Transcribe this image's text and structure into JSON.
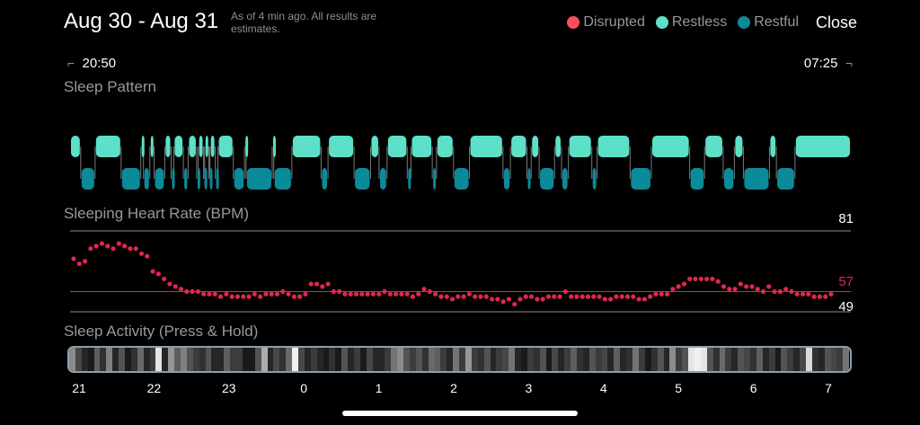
{
  "header": {
    "date_range": "Aug 30 - Aug 31",
    "as_of_note": "As of 4 min ago. All results are estimates.",
    "close_label": "Close"
  },
  "legend": [
    {
      "label": "Disrupted",
      "color": "#ff4d5e"
    },
    {
      "label": "Restless",
      "color": "#5ce1c8"
    },
    {
      "label": "Restful",
      "color": "#0b8a99"
    }
  ],
  "time_range": {
    "start": "20:50",
    "end": "07:25"
  },
  "sleep_pattern": {
    "title": "Sleep Pattern",
    "colors": {
      "restless": "#5ce1c8",
      "restful": "#0b8a99"
    },
    "segments": [
      [
        "restless",
        0,
        20
      ],
      [
        "restful",
        20,
        47
      ],
      [
        "restless",
        47,
        96
      ],
      [
        "restful",
        96,
        133
      ],
      [
        "restless",
        133,
        138
      ],
      [
        "restful",
        138,
        150
      ],
      [
        "restless",
        150,
        158
      ],
      [
        "restful",
        158,
        178
      ],
      [
        "restless",
        178,
        190
      ],
      [
        "restful",
        190,
        195
      ],
      [
        "restless",
        195,
        213
      ],
      [
        "restful",
        213,
        222
      ],
      [
        "restless",
        222,
        238
      ],
      [
        "restful",
        238,
        241
      ],
      [
        "restless",
        241,
        251
      ],
      [
        "restful",
        251,
        253
      ],
      [
        "restless",
        253,
        261
      ],
      [
        "restful",
        261,
        263
      ],
      [
        "restless",
        263,
        273
      ],
      [
        "restful",
        273,
        278
      ],
      [
        "restless",
        278,
        307
      ],
      [
        "restful",
        307,
        328
      ],
      [
        "restless",
        328,
        331
      ],
      [
        "restful",
        331,
        380
      ],
      [
        "restless",
        380,
        383
      ],
      [
        "restful",
        383,
        417
      ],
      [
        "restless",
        417,
        472
      ],
      [
        "restful",
        472,
        485
      ],
      [
        "restless",
        485,
        534
      ],
      [
        "restful",
        534,
        565
      ],
      [
        "restless",
        565,
        581
      ],
      [
        "restful",
        581,
        596
      ],
      [
        "restless",
        596,
        634
      ],
      [
        "restful",
        634,
        641
      ],
      [
        "restless",
        641,
        681
      ],
      [
        "restful",
        681,
        689
      ],
      [
        "restless",
        689,
        721
      ],
      [
        "restful",
        721,
        751
      ],
      [
        "restless",
        751,
        814
      ],
      [
        "restful",
        814,
        828
      ],
      [
        "restless",
        828,
        859
      ],
      [
        "restful",
        859,
        867
      ],
      [
        "restless",
        867,
        882
      ],
      [
        "restful",
        882,
        911
      ],
      [
        "restless",
        911,
        924
      ],
      [
        "restful",
        924,
        937
      ],
      [
        "restless",
        937,
        981
      ],
      [
        "restful",
        981,
        991
      ],
      [
        "restless",
        991,
        1053
      ],
      [
        "restful",
        1053,
        1093
      ],
      [
        "restless",
        1093,
        1165
      ],
      [
        "restful",
        1165,
        1193
      ],
      [
        "restless",
        1193,
        1228
      ],
      [
        "restful",
        1228,
        1249
      ],
      [
        "restless",
        1249,
        1266
      ],
      [
        "restful",
        1266,
        1315
      ],
      [
        "restless",
        1315,
        1328
      ],
      [
        "restful",
        1328,
        1363
      ],
      [
        "restless",
        1363,
        1468
      ]
    ],
    "total_minutes": 1468
  },
  "heart_rate": {
    "title": "Sleeping Heart Rate (BPM)",
    "max": 81,
    "avg": 57,
    "min": 49,
    "max_label": "81",
    "avg_label": "57",
    "min_label": "49",
    "color": "#e0274e",
    "samples": [
      70,
      68,
      69,
      74,
      75,
      76,
      75,
      74,
      76,
      75,
      74,
      74,
      72,
      71,
      65,
      64,
      62,
      60,
      59,
      58,
      57,
      57,
      57,
      56,
      56,
      56,
      55,
      56,
      55,
      55,
      55,
      55,
      56,
      55,
      56,
      56,
      56,
      57,
      56,
      55,
      55,
      56,
      60,
      60,
      59,
      60,
      57,
      57,
      56,
      56,
      56,
      56,
      56,
      56,
      56,
      57,
      56,
      56,
      56,
      56,
      55,
      56,
      58,
      57,
      56,
      55,
      55,
      54,
      55,
      55,
      56,
      55,
      55,
      55,
      54,
      54,
      53,
      54,
      52,
      54,
      55,
      55,
      54,
      54,
      55,
      55,
      55,
      57,
      55,
      55,
      55,
      55,
      55,
      55,
      54,
      54,
      55,
      55,
      55,
      55,
      54,
      54,
      55,
      56,
      56,
      56,
      58,
      59,
      60,
      62,
      62,
      62,
      62,
      62,
      61,
      59,
      58,
      58,
      60,
      59,
      59,
      58,
      57,
      59,
      57,
      57,
      58,
      57,
      56,
      56,
      56,
      55,
      55,
      55,
      56
    ]
  },
  "sleep_activity": {
    "title": "Sleep Activity (Press & Hold)",
    "levels": [
      0.55,
      0.25,
      0.1,
      0.05,
      0.35,
      0.15,
      0.5,
      0.1,
      0.3,
      0.05,
      0.15,
      0.4,
      0.1,
      0.2,
      0.95,
      0.1,
      0.6,
      0.35,
      0.5,
      0.3,
      0.2,
      0.15,
      0.3,
      0.1,
      0.1,
      0.35,
      0.2,
      0.2,
      0.05,
      0.05,
      0.3,
      0.7,
      0.1,
      0.25,
      0.15,
      0.4,
      1.0,
      0.25,
      0.1,
      0.2,
      0.1,
      0.05,
      0.15,
      0.05,
      0.3,
      0.1,
      0.2,
      0.05,
      0.25,
      0.1,
      0.1,
      0.2,
      0.45,
      0.55,
      0.3,
      0.2,
      0.3,
      0.15,
      0.4,
      0.35,
      0.2,
      0.1,
      0.45,
      0.2,
      0.6,
      0.2,
      0.15,
      0.3,
      0.1,
      0.2,
      0.25,
      0.45,
      0.1,
      0.05,
      0.2,
      0.15,
      0.3,
      0.05,
      0.25,
      0.1,
      0.2,
      0.35,
      0.15,
      0.1,
      0.3,
      0.2,
      0.25,
      0.1,
      0.35,
      0.1,
      0.15,
      0.45,
      0.2,
      0.05,
      0.15,
      0.3,
      0.1,
      0.55,
      0.2,
      0.3,
      0.95,
      1.0,
      0.95,
      0.3,
      0.15,
      0.4,
      0.2,
      0.1,
      0.3,
      0.25,
      0.15,
      0.35,
      0.1,
      0.2,
      0.05,
      0.3,
      0.2,
      0.1,
      0.25,
      0.9,
      0.15,
      0.1,
      0.3,
      0.25,
      0.2,
      0.45
    ]
  },
  "hour_labels": [
    "21",
    "22",
    "23",
    "0",
    "1",
    "2",
    "3",
    "4",
    "5",
    "6",
    "7"
  ]
}
